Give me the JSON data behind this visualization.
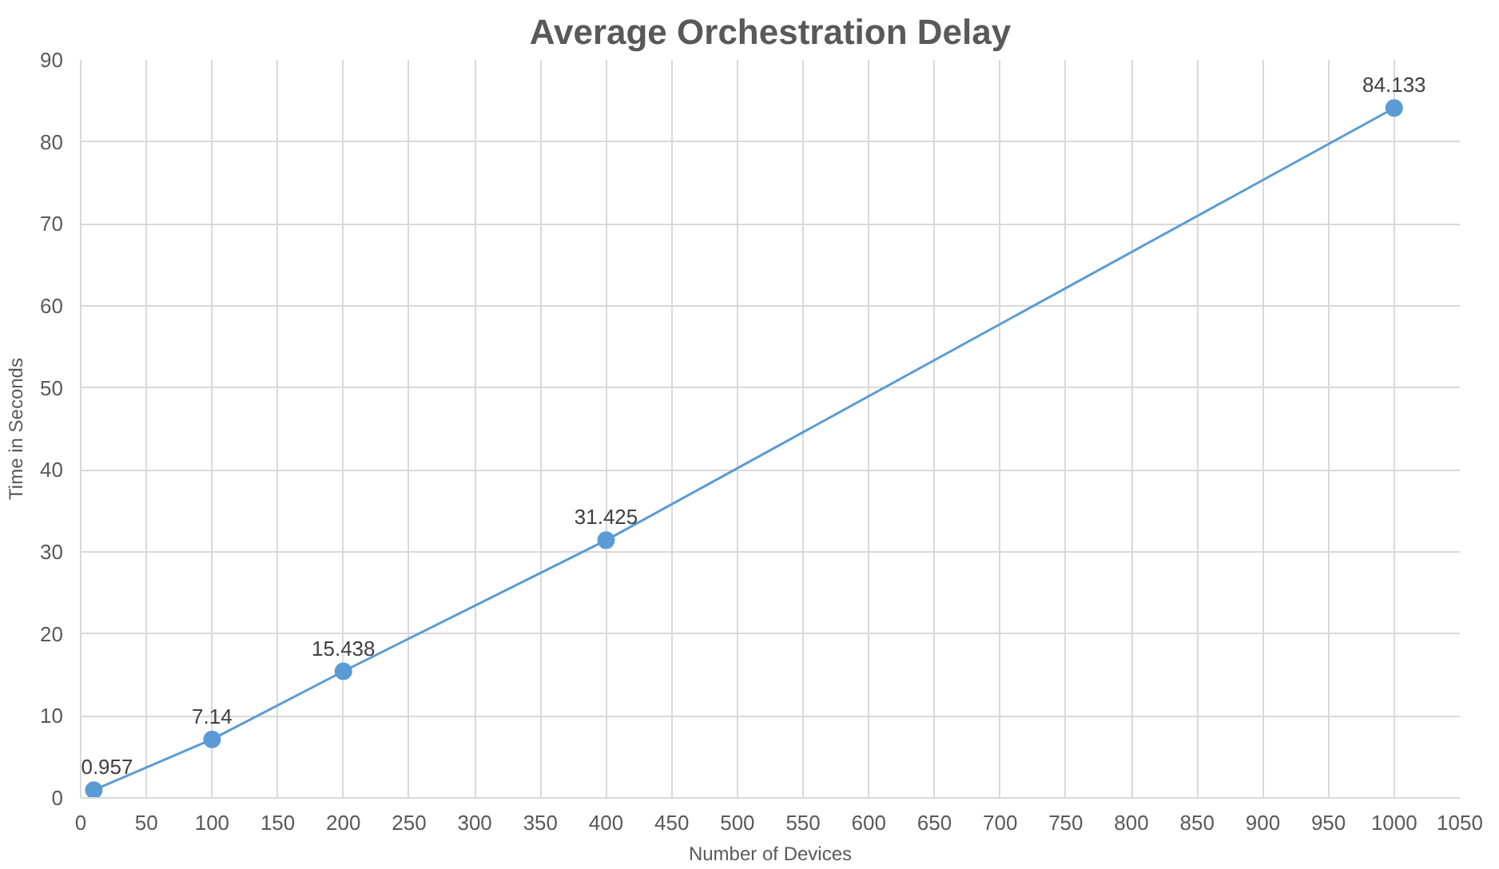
{
  "chart_data": {
    "type": "line",
    "title": "Average Orchestration Delay",
    "xlabel": "Number of Devices",
    "ylabel": "Time in Seconds",
    "x": [
      10,
      100,
      200,
      400,
      1000
    ],
    "series": [
      {
        "color": "#5b9bd5",
        "values": [
          0.957,
          7.14,
          15.438,
          31.425,
          84.133
        ]
      }
    ],
    "xlim": [
      0,
      1050
    ],
    "xticks": [
      0,
      50,
      100,
      150,
      200,
      250,
      300,
      350,
      400,
      450,
      500,
      550,
      600,
      650,
      700,
      750,
      800,
      850,
      900,
      950,
      1000,
      1050
    ],
    "ylim": [
      0,
      90
    ],
    "yticks": [
      0,
      10,
      20,
      30,
      40,
      50,
      60,
      70,
      80,
      90
    ],
    "grid": true,
    "marker": "circle",
    "line_style": "solid",
    "data_labels": true
  }
}
